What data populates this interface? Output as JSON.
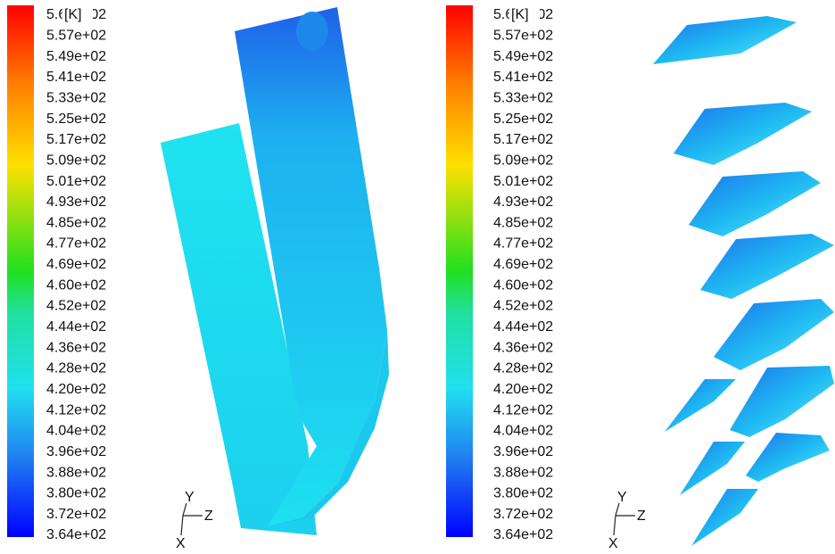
{
  "panels": [
    {
      "colorbar": {
        "unit": "[K]",
        "labels": [
          "5.65e+02",
          "5.57e+02",
          "5.49e+02",
          "5.41e+02",
          "5.33e+02",
          "5.25e+02",
          "5.17e+02",
          "5.09e+02",
          "5.01e+02",
          "4.93e+02",
          "4.85e+02",
          "4.77e+02",
          "4.69e+02",
          "4.60e+02",
          "4.52e+02",
          "4.44e+02",
          "4.36e+02",
          "4.28e+02",
          "4.20e+02",
          "4.12e+02",
          "4.04e+02",
          "3.96e+02",
          "3.88e+02",
          "3.80e+02",
          "3.72e+02",
          "3.64e+02"
        ]
      },
      "axes": {
        "y": "Y",
        "z": "Z",
        "x": "X"
      }
    },
    {
      "colorbar": {
        "unit": "[K]",
        "labels": [
          "5.65e+02",
          "5.57e+02",
          "5.49e+02",
          "5.41e+02",
          "5.33e+02",
          "5.25e+02",
          "5.17e+02",
          "5.09e+02",
          "5.01e+02",
          "4.93e+02",
          "4.85e+02",
          "4.77e+02",
          "4.69e+02",
          "4.60e+02",
          "4.52e+02",
          "4.44e+02",
          "4.36e+02",
          "4.28e+02",
          "4.20e+02",
          "4.12e+02",
          "4.04e+02",
          "3.96e+02",
          "3.88e+02",
          "3.80e+02",
          "3.72e+02",
          "3.64e+02"
        ]
      },
      "axes": {
        "y": "Y",
        "z": "Z",
        "x": "X"
      }
    }
  ]
}
